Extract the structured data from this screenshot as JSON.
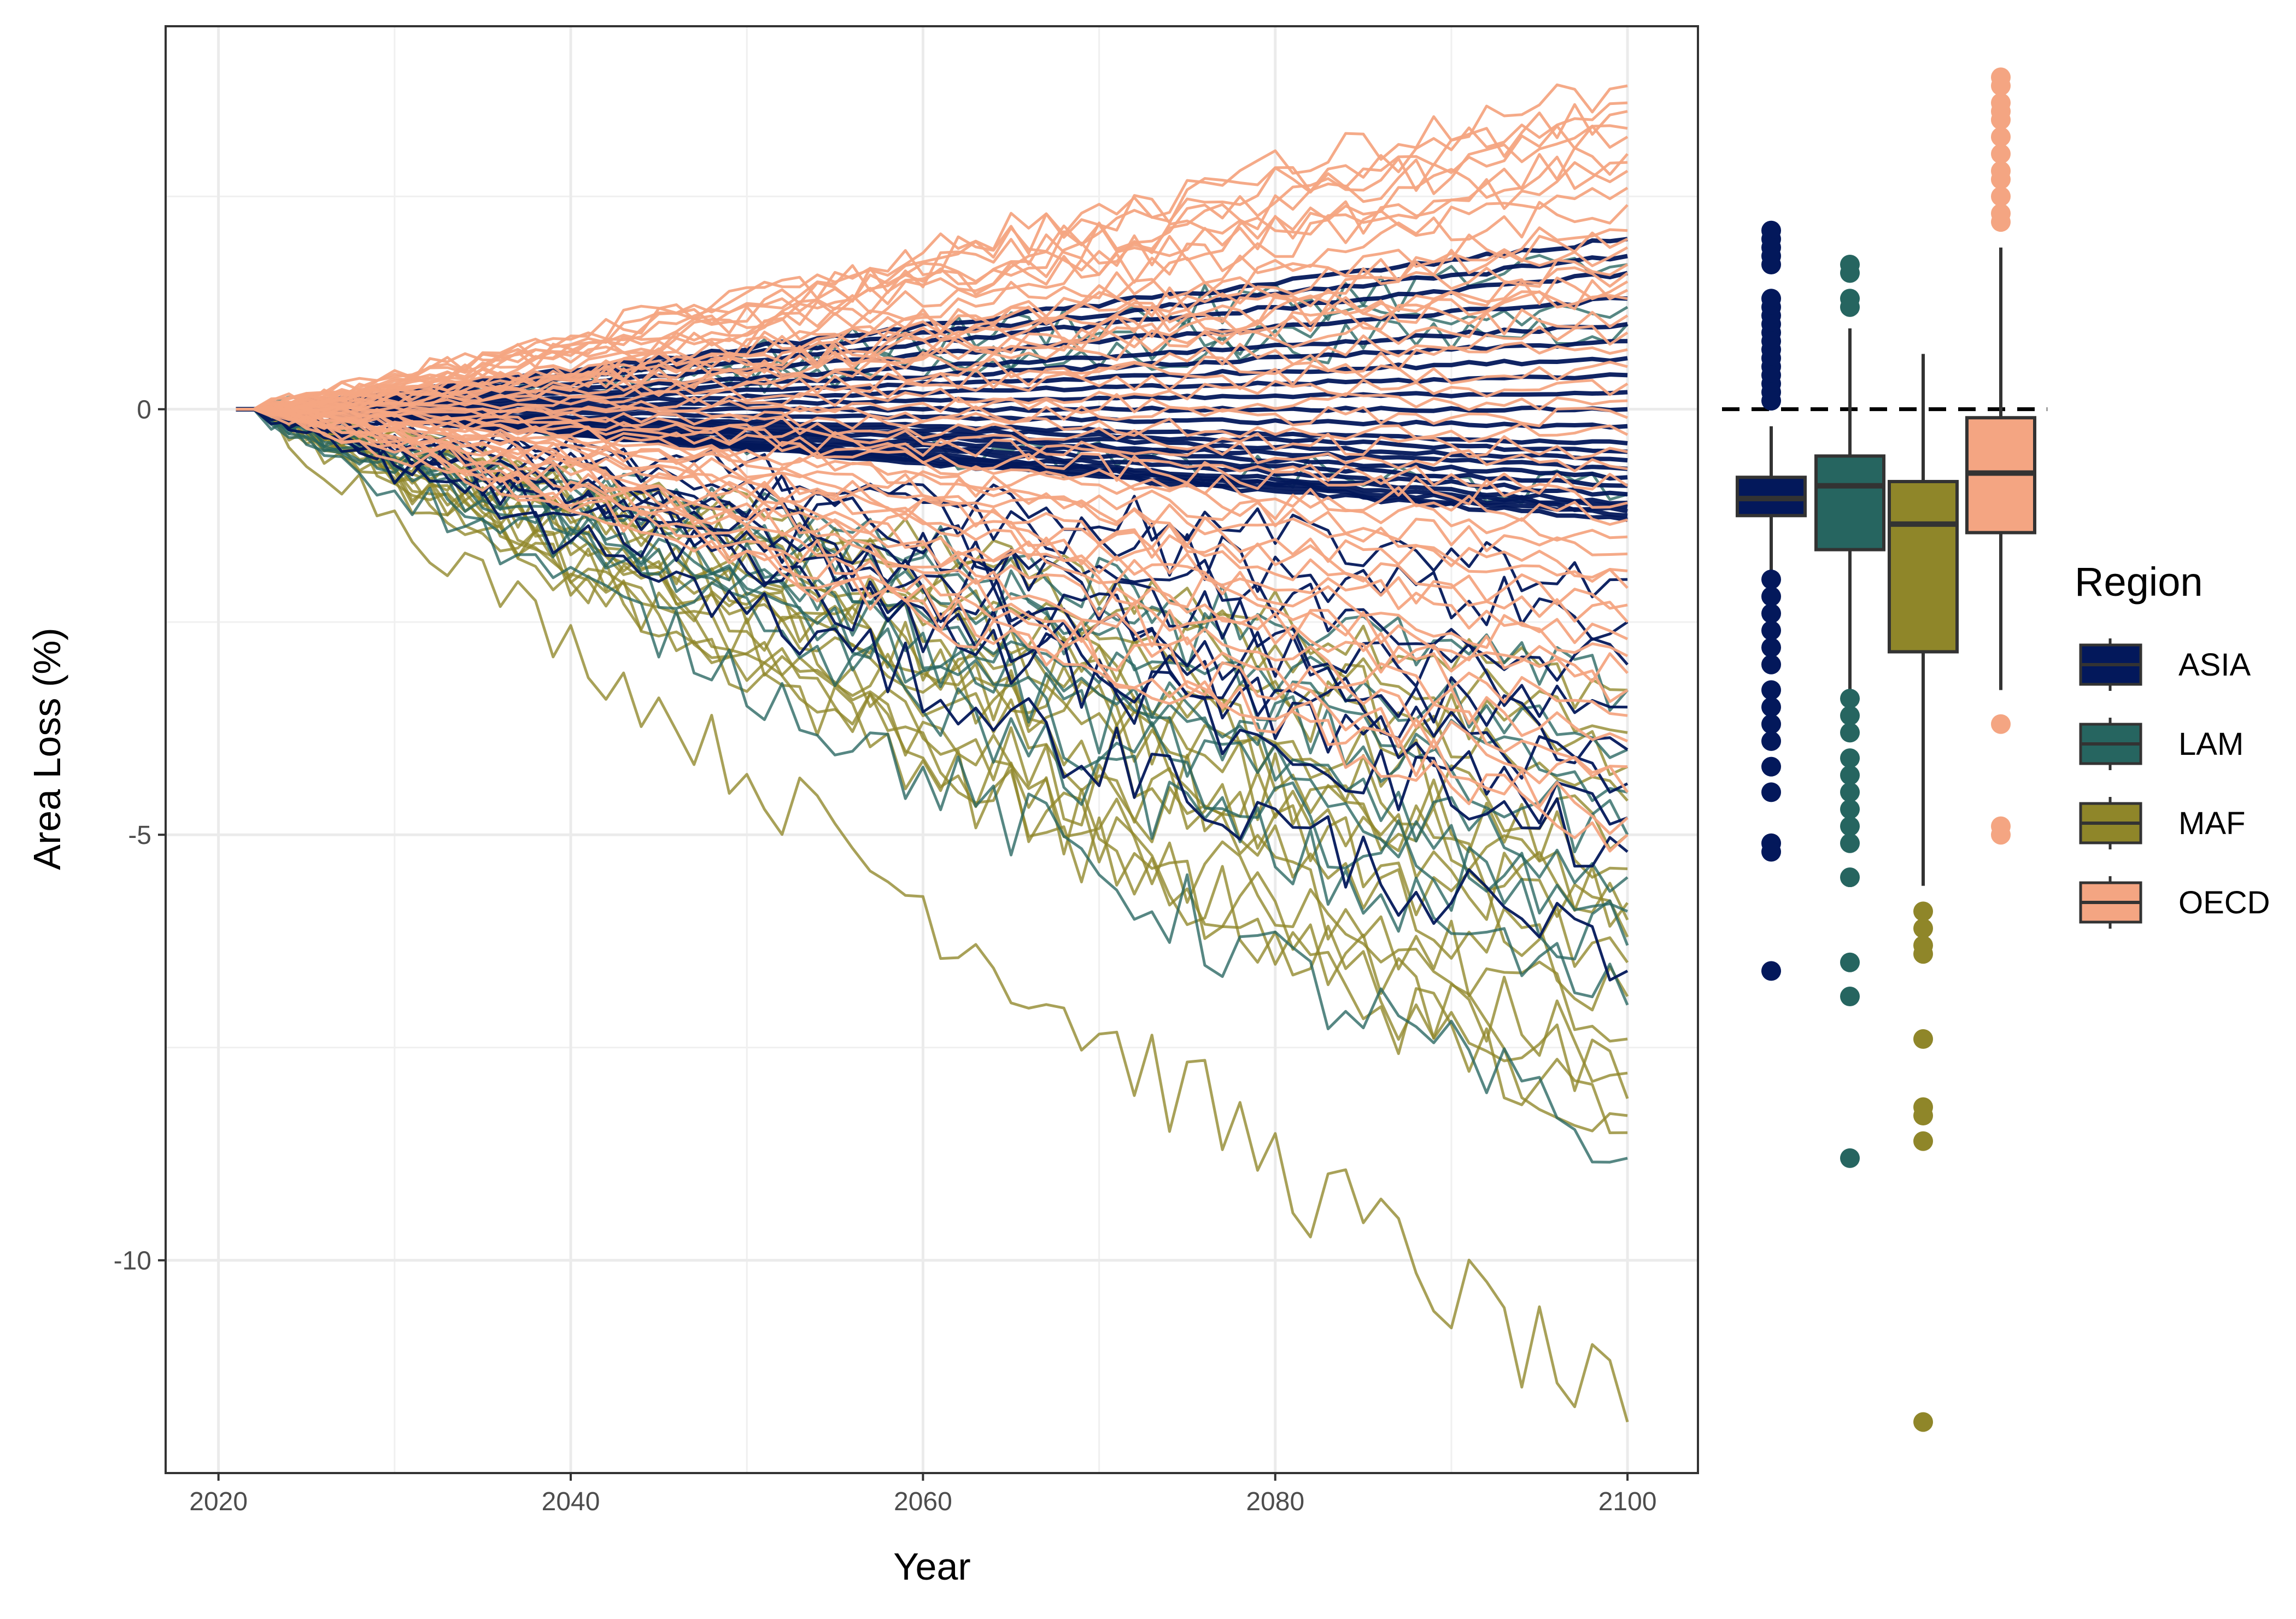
{
  "chart_data": [
    {
      "type": "line",
      "title": "",
      "xlabel": "Year",
      "ylabel": "Area Loss (%)",
      "xlim": [
        2017,
        2104
      ],
      "ylim": [
        -12.5,
        4.5
      ],
      "x_ticks": [
        2020,
        2040,
        2060,
        2080,
        2100
      ],
      "y_ticks": [
        -10,
        -5,
        0
      ],
      "grid": true,
      "baseline_year": 2021,
      "divergence_start_year": 2023,
      "series_groups": [
        {
          "name": "OECD",
          "color": "#F4A582",
          "end_values": [
            3.8,
            3.6,
            3.5,
            3.3,
            3.2,
            3.0,
            2.9,
            2.8,
            2.6,
            2.4,
            2.1,
            2.0,
            1.9,
            1.7,
            1.6,
            1.5,
            1.4,
            1.3,
            1.1,
            0.9,
            0.7,
            0.5,
            0.3,
            0.1,
            -0.1,
            -0.3,
            -0.5,
            -0.7,
            -0.9,
            -1.1,
            -1.3,
            -1.5,
            -1.7,
            -1.9,
            -2.1,
            -2.3,
            -2.5,
            -2.7,
            -2.9,
            -3.1,
            -3.3,
            -3.6,
            -3.9,
            -4.2,
            -4.5,
            -4.8,
            -5.0
          ]
        },
        {
          "name": "ASIA",
          "color": "#03185B",
          "end_values": [
            2.0,
            1.8,
            1.6,
            1.3,
            1.0,
            0.8,
            0.6,
            0.4,
            0.2,
            0.0,
            -0.2,
            -0.4,
            -0.5,
            -0.6,
            -0.7,
            -0.8,
            -0.9,
            -1.0,
            -1.1,
            -1.15,
            -1.2,
            -1.25,
            -1.3,
            -2.0,
            -2.5,
            -3.0,
            -3.5,
            -4.0,
            -4.4,
            -4.8,
            -5.2,
            -6.6
          ]
        },
        {
          "name": "LAM",
          "color": "#266560",
          "end_values": [
            1.7,
            1.2,
            1.0,
            -1.0,
            -3.3,
            -4.0,
            -4.5,
            -5.0,
            -5.5,
            -5.9,
            -6.3,
            -7.0,
            -8.8
          ]
        },
        {
          "name": "MAF",
          "color": "#8F8629",
          "end_values": [
            -3.3,
            -3.8,
            -4.2,
            -4.6,
            -5.0,
            -5.4,
            -5.8,
            -6.0,
            -6.2,
            -6.5,
            -6.9,
            -7.4,
            -7.8,
            -8.1,
            -8.3,
            -8.5,
            -11.9
          ]
        }
      ]
    },
    {
      "type": "box",
      "ylim": [
        -12.5,
        4.5
      ],
      "reference_line": 0,
      "boxes": [
        {
          "name": "ASIA",
          "color": "#03185B",
          "q1": -1.25,
          "median": -1.05,
          "q3": -0.8,
          "whisker_low": -1.9,
          "whisker_high": -0.2,
          "outliers": [
            2.1,
            2.0,
            1.9,
            1.8,
            1.7,
            1.3,
            1.2,
            1.1,
            1.0,
            0.9,
            0.8,
            0.7,
            0.6,
            0.5,
            0.4,
            0.3,
            0.2,
            0.1,
            -2.0,
            -2.2,
            -2.4,
            -2.6,
            -2.8,
            -3.0,
            -3.3,
            -3.5,
            -3.7,
            -3.9,
            -4.2,
            -4.5,
            -5.1,
            -5.2,
            -6.6
          ]
        },
        {
          "name": "LAM",
          "color": "#266560",
          "q1": -1.65,
          "median": -0.9,
          "q3": -0.55,
          "whisker_low": -3.3,
          "whisker_high": 0.95,
          "outliers": [
            1.7,
            1.6,
            1.3,
            1.2,
            -3.4,
            -3.6,
            -3.8,
            -4.1,
            -4.3,
            -4.5,
            -4.7,
            -4.9,
            -5.1,
            -5.5,
            -6.5,
            -6.9,
            -8.8
          ]
        },
        {
          "name": "MAF",
          "color": "#8F8629",
          "q1": -2.85,
          "median": -1.35,
          "q3": -0.85,
          "whisker_low": -5.6,
          "whisker_high": 0.65,
          "outliers": [
            -5.9,
            -6.1,
            -6.3,
            -6.4,
            -7.4,
            -8.2,
            -8.3,
            -8.6,
            -11.9
          ]
        },
        {
          "name": "OECD",
          "color": "#F4A582",
          "q1": -1.45,
          "median": -0.75,
          "q3": -0.1,
          "whisker_low": -3.3,
          "whisker_high": 1.9,
          "outliers": [
            3.9,
            3.8,
            3.6,
            3.5,
            3.4,
            3.2,
            3.0,
            2.8,
            2.7,
            2.5,
            2.3,
            2.2,
            -3.7,
            -4.9,
            -5.0
          ]
        }
      ]
    }
  ],
  "legend": {
    "title": "Region",
    "items": [
      {
        "label": "ASIA",
        "color": "#03185B"
      },
      {
        "label": "LAM",
        "color": "#266560"
      },
      {
        "label": "MAF",
        "color": "#8F8629"
      },
      {
        "label": "OECD",
        "color": "#F4A582"
      }
    ]
  }
}
